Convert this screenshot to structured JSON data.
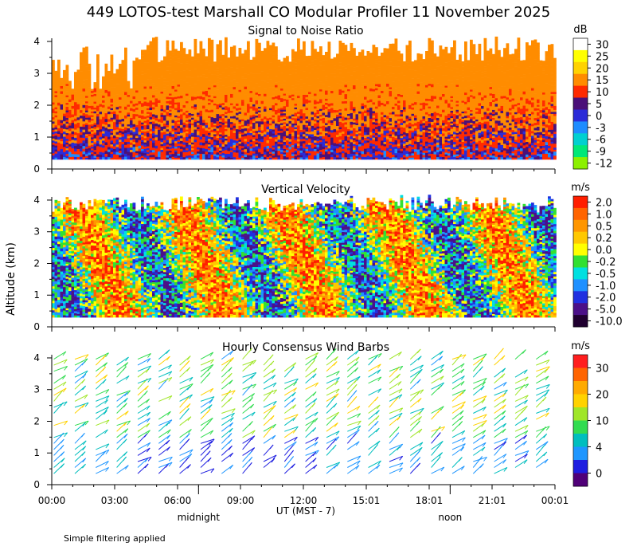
{
  "figure": {
    "title": "449 LOTOS-test Marshall CO Modular Profiler 11 November 2025",
    "ylabel": "Altitude (km)",
    "xlabel": "UT  (MST - 7)",
    "x_ticks": [
      "00:00",
      "03:00",
      "06:00",
      "09:00",
      "12:00",
      "15:01",
      "18:01",
      "21:01",
      "00:01"
    ],
    "local_markers": [
      {
        "label": "midnight",
        "hour": 7
      },
      {
        "label": "noon",
        "hour": 19
      }
    ],
    "footnote": "Simple filtering applied"
  },
  "chart_data": [
    {
      "type": "heatmap",
      "title": "Signal to Noise Ratio",
      "y_ticks": [
        "0",
        "1",
        "2",
        "3",
        "4"
      ],
      "ylim": [
        0,
        4.1
      ],
      "xlim_hours": [
        0,
        24
      ],
      "colorbar": {
        "unit": "dB",
        "labels": [
          "30",
          "25",
          "20",
          "15",
          "10",
          "5",
          "0",
          "-3",
          "-6",
          "-9",
          "-12"
        ],
        "colors": [
          "#ffffff",
          "#ffff00",
          "#ffd200",
          "#ff8c00",
          "#ff2a00",
          "#4b1078",
          "#2b2bd8",
          "#1e8cff",
          "#00d0d0",
          "#00e878",
          "#8cf000"
        ]
      }
    },
    {
      "type": "heatmap",
      "title": "Vertical Velocity",
      "y_ticks": [
        "0",
        "1",
        "2",
        "3",
        "4"
      ],
      "ylim": [
        0,
        4.1
      ],
      "xlim_hours": [
        0,
        24
      ],
      "colorbar": {
        "unit": "m/s",
        "labels": [
          "2.0",
          "1.0",
          "0.5",
          "0.2",
          "0.0",
          "-0.2",
          "-0.5",
          "-1.0",
          "-2.0",
          "-5.0",
          "-10.0"
        ],
        "colors": [
          "#ff1e00",
          "#ff6400",
          "#ff9600",
          "#ffc800",
          "#ffff00",
          "#32e032",
          "#00e0e0",
          "#1e90ff",
          "#2030e0",
          "#4b1088",
          "#200030"
        ]
      }
    },
    {
      "type": "scatter",
      "title": "Hourly Consensus Wind Barbs",
      "y_ticks": [
        "0",
        "1",
        "2",
        "3",
        "4"
      ],
      "ylim": [
        0,
        4.1
      ],
      "xlim_hours": [
        0,
        24
      ],
      "colorbar": {
        "unit": "m/s",
        "labels": [
          "30",
          "20",
          "10",
          "4",
          "0"
        ],
        "colors": [
          "#ff1e1e",
          "#ff6400",
          "#ffaa00",
          "#ffd200",
          "#a0e628",
          "#32dc50",
          "#00bebe",
          "#1e96ff",
          "#1e1ee0",
          "#500078"
        ]
      }
    }
  ]
}
